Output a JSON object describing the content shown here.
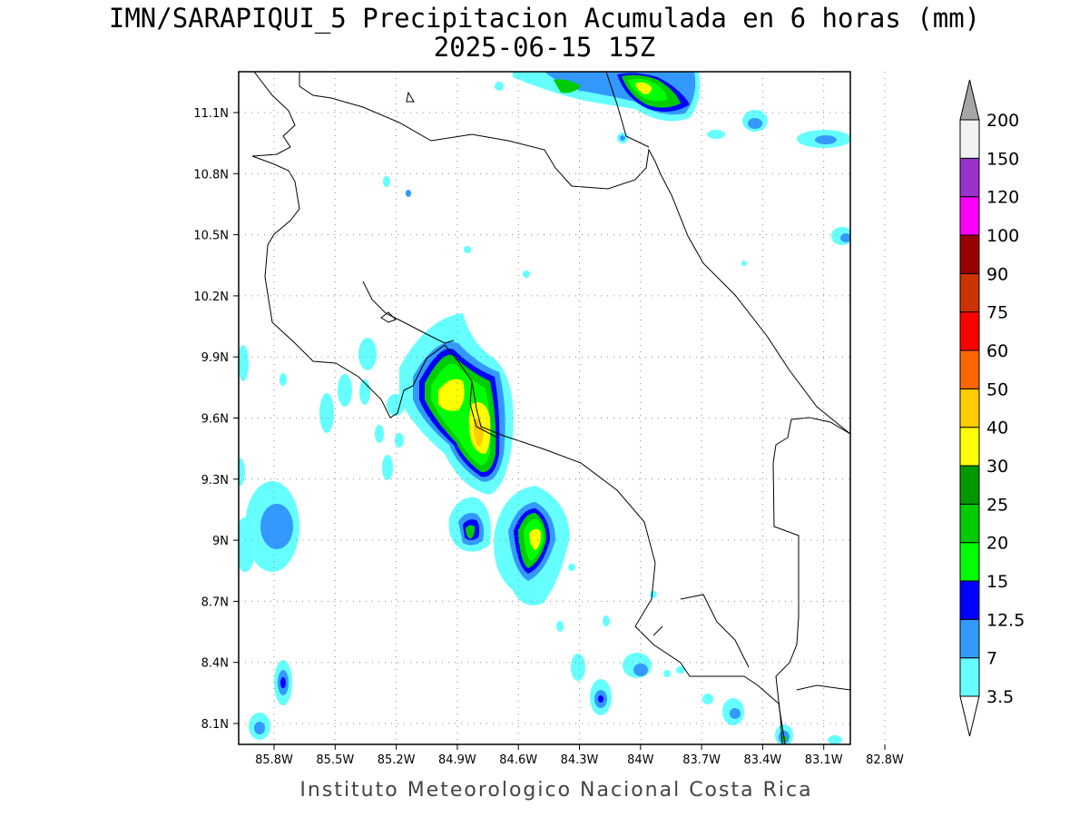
{
  "title_line1": "IMN/SARAPIQUI_5 Precipitacion Acumulada en 6 horas (mm)",
  "title_line2": "2025-06-15 15Z",
  "footer": "Instituto Meteorologico Nacional Costa Rica",
  "map": {
    "lon_range": [
      -86.0,
      -83.0
    ],
    "lat_range": [
      8.0,
      11.3
    ],
    "lon_ticks": [
      "85.8W",
      "85.5W",
      "85.2W",
      "84.9W",
      "84.6W",
      "84.3W",
      "84W",
      "83.7W",
      "83.4W",
      "83.1W",
      "82.8W"
    ],
    "lat_ticks": [
      "11.1N",
      "10.8N",
      "10.5N",
      "10.2N",
      "9.9N",
      "9.6N",
      "9.3N",
      "9N",
      "8.7N",
      "8.4N",
      "8.1N"
    ]
  },
  "colorbar": {
    "labels": [
      "3.5",
      "7",
      "12.5",
      "15",
      "20",
      "25",
      "30",
      "40",
      "50",
      "60",
      "75",
      "90",
      "100",
      "120",
      "150",
      "200"
    ],
    "colors": {
      "below": "#ffffff",
      "b1": "#66ffff",
      "b2": "#3399ff",
      "b3": "#0000ff",
      "b4": "#00ff00",
      "b5": "#00cc00",
      "b6": "#009900",
      "b7": "#ffff00",
      "b8": "#ffcc00",
      "b9": "#ff6600",
      "b10": "#ff0000",
      "b11": "#cc3300",
      "b12": "#990000",
      "b13": "#ff00ff",
      "b14": "#9933cc",
      "b15": "#f2f2f2",
      "above": "#a6a6a6"
    }
  }
}
